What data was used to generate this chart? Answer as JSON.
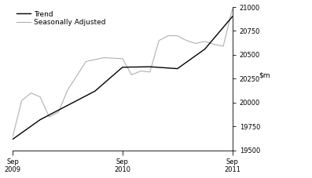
{
  "ylim": [
    19500,
    21000
  ],
  "yticks": [
    19500,
    19750,
    20000,
    20250,
    20500,
    20750,
    21000
  ],
  "xtick_positions": [
    0,
    4,
    8
  ],
  "xtick_labels": [
    "Sep\n2009",
    "Sep\n2010",
    "Sep\n2011"
  ],
  "xlim": [
    0,
    8
  ],
  "trend_x": [
    0,
    1,
    2,
    3,
    4,
    5,
    6,
    7,
    8
  ],
  "trend_y": [
    19615,
    19820,
    19970,
    20120,
    20370,
    20375,
    20355,
    20560,
    20900
  ],
  "seasonal_x": [
    0,
    0.33,
    0.67,
    1,
    1.33,
    1.67,
    2,
    2.67,
    3.33,
    4,
    4.33,
    4.67,
    5,
    5.33,
    5.67,
    6,
    6.33,
    6.67,
    7,
    7.33,
    7.67,
    8
  ],
  "seasonal_y": [
    19640,
    20020,
    20100,
    20060,
    19850,
    19900,
    20130,
    20430,
    20470,
    20460,
    20290,
    20330,
    20320,
    20650,
    20700,
    20700,
    20650,
    20620,
    20640,
    20610,
    20590,
    20980
  ],
  "trend_color": "#000000",
  "seasonal_color": "#b0b0b0",
  "trend_linewidth": 1.0,
  "seasonal_linewidth": 0.8,
  "legend_trend": "Trend",
  "legend_seasonal": "Seasonally Adjusted",
  "background_color": "#ffffff",
  "legend_fontsize": 6.5,
  "tick_fontsize": 6.0,
  "ylabel_fontsize": 6.5
}
